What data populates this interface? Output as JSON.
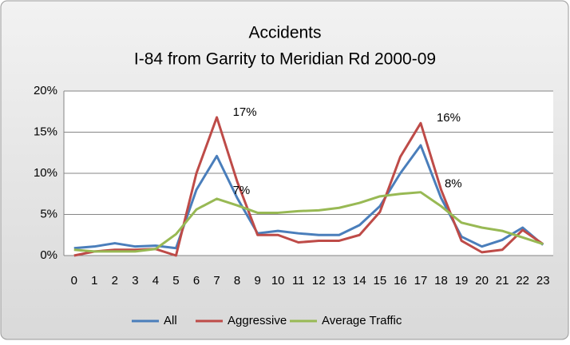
{
  "chart_data": {
    "type": "line",
    "title": "Accidents",
    "subtitle": "I-84 from Garrity to Meridian Rd 2000-09",
    "categories": [
      "0",
      "1",
      "2",
      "3",
      "4",
      "5",
      "6",
      "7",
      "8",
      "9",
      "10",
      "11",
      "12",
      "13",
      "14",
      "15",
      "16",
      "17",
      "18",
      "19",
      "20",
      "21",
      "22",
      "23"
    ],
    "series": [
      {
        "name": "All",
        "color": "#4a7ebb",
        "values": [
          0.9,
          1.1,
          1.5,
          1.1,
          1.2,
          0.9,
          8,
          12.1,
          7,
          2.7,
          3.0,
          2.7,
          2.5,
          2.5,
          3.7,
          6,
          10,
          13.4,
          7,
          2.3,
          1.1,
          1.9,
          3.4,
          1.3
        ]
      },
      {
        "name": "Aggressive",
        "color": "#be4b48",
        "values": [
          0,
          0.5,
          0.7,
          0.7,
          0.8,
          0,
          10,
          16.8,
          9,
          2.5,
          2.5,
          1.6,
          1.8,
          1.8,
          2.5,
          5.3,
          12,
          16.1,
          8,
          1.8,
          0.4,
          0.7,
          3.1,
          1.4
        ],
        "value_labels": [
          null,
          null,
          null,
          null,
          null,
          null,
          null,
          "17%",
          null,
          null,
          null,
          null,
          null,
          null,
          null,
          null,
          null,
          "16%",
          null,
          null,
          null,
          null,
          null,
          null
        ]
      },
      {
        "name": "Average Traffic",
        "color": "#98b954",
        "values": [
          0.7,
          0.5,
          0.5,
          0.5,
          0.8,
          2.6,
          5.6,
          6.9,
          6.1,
          5.2,
          5.2,
          5.4,
          5.5,
          5.8,
          6.4,
          7.2,
          7.5,
          7.7,
          6,
          4,
          3.4,
          3.0,
          2.2,
          1.4
        ],
        "value_labels": [
          null,
          null,
          null,
          null,
          null,
          null,
          null,
          "7%",
          null,
          null,
          null,
          null,
          null,
          null,
          null,
          null,
          null,
          "8%",
          null,
          null,
          null,
          null,
          null,
          null
        ]
      }
    ],
    "ylim": [
      0,
      20
    ],
    "yticks": [
      {
        "value": 0,
        "label": "0%"
      },
      {
        "value": 5,
        "label": "5%"
      },
      {
        "value": 10,
        "label": "10%"
      },
      {
        "value": 15,
        "label": "15%"
      },
      {
        "value": 20,
        "label": "20%"
      }
    ],
    "grid": true,
    "legend": "bottom"
  }
}
